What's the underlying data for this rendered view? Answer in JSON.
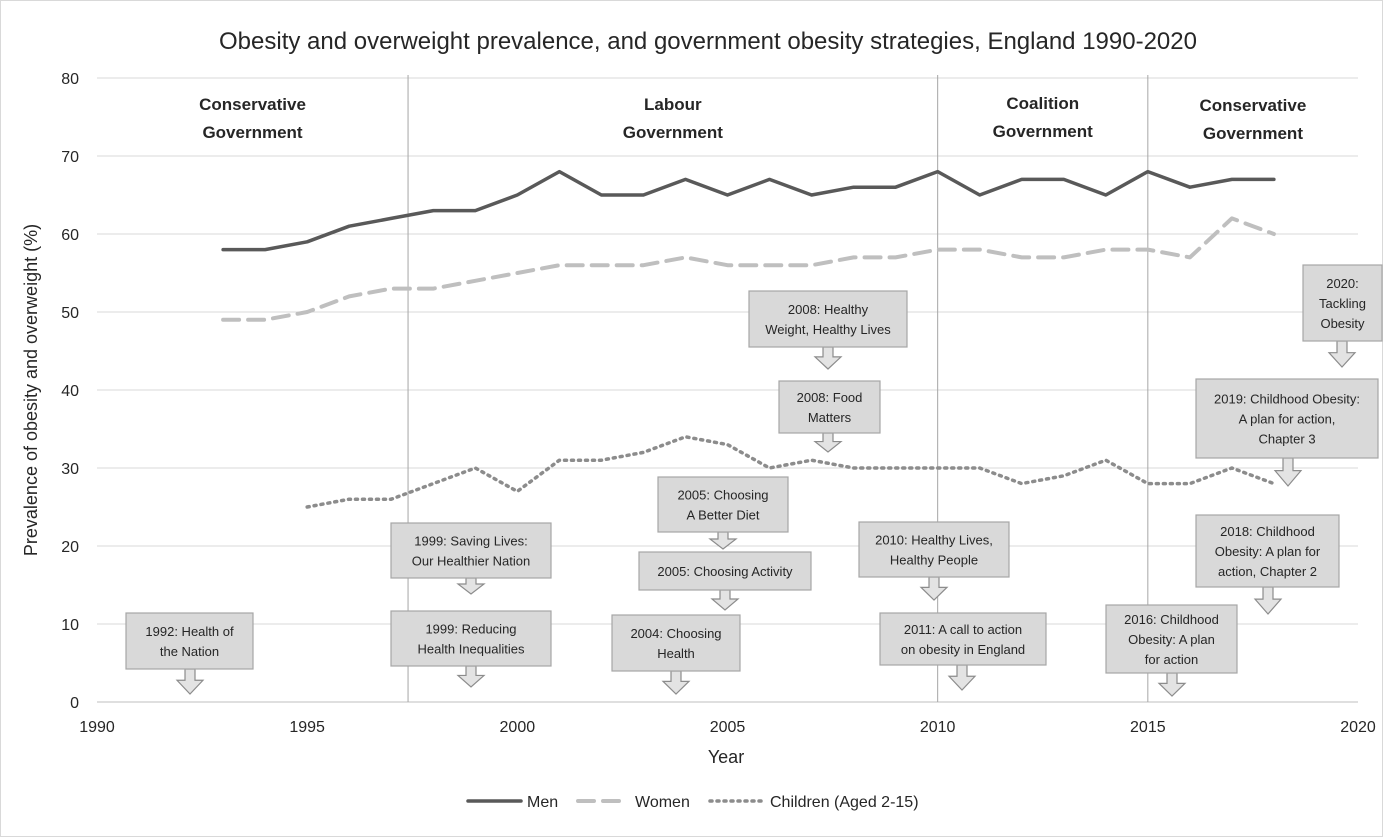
{
  "chart_data": {
    "type": "line",
    "title": "Obesity and overweight prevalence, and government obesity strategies, England 1990-2020",
    "xlabel": "Year",
    "ylabel": "Prevalence of obesity and overweight (%)",
    "xlim": [
      1990,
      2020
    ],
    "ylim": [
      0,
      80
    ],
    "x_ticks": [
      1990,
      1995,
      2000,
      2005,
      2010,
      2015,
      2020
    ],
    "y_ticks": [
      0,
      10,
      20,
      30,
      40,
      50,
      60,
      70,
      80
    ],
    "grid": true,
    "legend_position": "bottom",
    "series": [
      {
        "name": "Men",
        "style": "solid",
        "color": "#595959",
        "x": [
          1993,
          1994,
          1995,
          1996,
          1997,
          1998,
          1999,
          2000,
          2001,
          2002,
          2003,
          2004,
          2005,
          2006,
          2007,
          2008,
          2009,
          2010,
          2011,
          2012,
          2013,
          2014,
          2015,
          2016,
          2017,
          2018
        ],
        "values": [
          58,
          58,
          59,
          61,
          62,
          63,
          63,
          65,
          68,
          65,
          65,
          67,
          65,
          67,
          65,
          66,
          66,
          68,
          65,
          67,
          67,
          65,
          68,
          66,
          67,
          67
        ]
      },
      {
        "name": "Women",
        "style": "dashed",
        "color": "#bfbfbf",
        "x": [
          1993,
          1994,
          1995,
          1996,
          1997,
          1998,
          1999,
          2000,
          2001,
          2002,
          2003,
          2004,
          2005,
          2006,
          2007,
          2008,
          2009,
          2010,
          2011,
          2012,
          2013,
          2014,
          2015,
          2016,
          2017,
          2018
        ],
        "values": [
          49,
          49,
          50,
          52,
          53,
          53,
          54,
          55,
          56,
          56,
          56,
          57,
          56,
          56,
          56,
          57,
          57,
          58,
          58,
          57,
          57,
          58,
          58,
          57,
          62,
          60
        ]
      },
      {
        "name": "Children (Aged 2-15)",
        "style": "dotted",
        "color": "#8c8c8c",
        "x": [
          1995,
          1996,
          1997,
          1998,
          1999,
          2000,
          2001,
          2002,
          2003,
          2004,
          2005,
          2006,
          2007,
          2008,
          2009,
          2010,
          2011,
          2012,
          2013,
          2014,
          2015,
          2016,
          2017,
          2018
        ],
        "values": [
          25,
          26,
          26,
          28,
          30,
          27,
          31,
          31,
          32,
          34,
          33,
          30,
          31,
          30,
          30,
          30,
          30,
          28,
          29,
          31,
          28,
          28,
          30,
          28
        ]
      }
    ],
    "government_dividers": [
      1997.4,
      2010,
      2015
    ],
    "governments": [
      {
        "lines": [
          "Conservative",
          "Government"
        ]
      },
      {
        "lines": [
          "Labour",
          "Government"
        ]
      },
      {
        "lines": [
          "Coalition",
          "Government"
        ]
      },
      {
        "lines": [
          "Conservative",
          "Government"
        ]
      }
    ],
    "annotations": [
      {
        "lines": [
          "1992: Health of",
          "the Nation"
        ],
        "year": 1992
      },
      {
        "lines": [
          "1999: Saving Lives:",
          "Our Healthier Nation"
        ],
        "year": 1999
      },
      {
        "lines": [
          "1999: Reducing",
          "Health Inequalities"
        ],
        "year": 1999
      },
      {
        "lines": [
          "2004: Choosing",
          "Health"
        ],
        "year": 2004
      },
      {
        "lines": [
          "2005: Choosing",
          "A Better Diet"
        ],
        "year": 2005
      },
      {
        "lines": [
          "2005: Choosing Activity"
        ],
        "year": 2005
      },
      {
        "lines": [
          "2008: Healthy",
          "Weight, Healthy Lives"
        ],
        "year": 2008
      },
      {
        "lines": [
          "2008: Food",
          "Matters"
        ],
        "year": 2008
      },
      {
        "lines": [
          "2010: Healthy Lives,",
          "Healthy People"
        ],
        "year": 2010
      },
      {
        "lines": [
          "2011: A call to action",
          "on obesity in England"
        ],
        "year": 2011
      },
      {
        "lines": [
          "2016: Childhood",
          "Obesity: A plan",
          "for action"
        ],
        "year": 2016
      },
      {
        "lines": [
          "2018: Childhood",
          "Obesity: A plan for",
          "action, Chapter 2"
        ],
        "year": 2018
      },
      {
        "lines": [
          "2019: Childhood Obesity:",
          "A plan for action,",
          "Chapter 3"
        ],
        "year": 2019
      },
      {
        "lines": [
          "2020:",
          "Tackling",
          "Obesity"
        ],
        "year": 2020
      }
    ]
  }
}
